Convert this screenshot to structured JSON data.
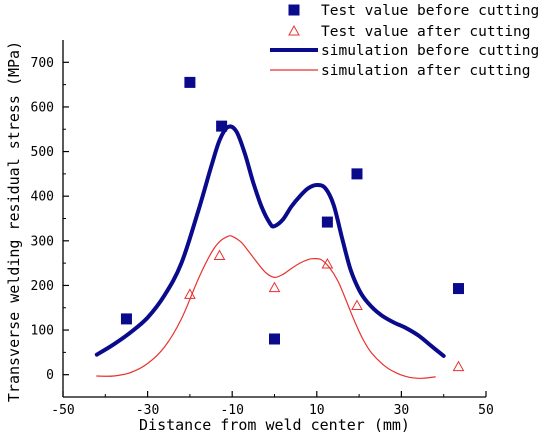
{
  "chart_data": {
    "type": "scatter",
    "xlabel": "Distance from weld center (mm)",
    "ylabel": "Transverse welding residual stress (MPa)",
    "xlim": [
      -50,
      50
    ],
    "ylim": [
      -50,
      750
    ],
    "xticks": [
      -50,
      -30,
      -10,
      10,
      30,
      50
    ],
    "yticks": [
      0,
      100,
      200,
      300,
      400,
      500,
      600,
      700
    ],
    "grid": false,
    "legend_position": "top-right",
    "series": [
      {
        "name": "Test value before cutting",
        "kind": "marker-square",
        "color": "#0a0a8c",
        "x": [
          -35,
          -20,
          -12.5,
          0,
          12.5,
          19.5,
          43.5
        ],
        "y": [
          125,
          655,
          557,
          80,
          342,
          450,
          193
        ]
      },
      {
        "name": "Test value after cutting",
        "kind": "marker-triangle-open",
        "color": "#e8322e",
        "x": [
          -20,
          -13,
          0,
          12.5,
          19.5,
          43.5
        ],
        "y": [
          180,
          267,
          195,
          248,
          155,
          18
        ]
      },
      {
        "name": "simulation before cutting",
        "kind": "line-thick",
        "color": "#0a0a8c",
        "x": [
          -42,
          -38,
          -34,
          -30,
          -26,
          -22,
          -18,
          -15,
          -13,
          -11,
          -9,
          -7,
          -5,
          -3,
          -1,
          0,
          2,
          4,
          6,
          8,
          10,
          12,
          14,
          16,
          18,
          20,
          22,
          25,
          28,
          31,
          34,
          37,
          40
        ],
        "y": [
          45,
          68,
          95,
          128,
          178,
          250,
          368,
          465,
          525,
          555,
          545,
          495,
          430,
          375,
          338,
          333,
          348,
          377,
          400,
          418,
          425,
          418,
          380,
          305,
          235,
          190,
          162,
          135,
          118,
          105,
          88,
          65,
          42
        ]
      },
      {
        "name": "simulation after cutting",
        "kind": "line-thin",
        "color": "#e8322e",
        "x": [
          -42,
          -38,
          -34,
          -30,
          -26,
          -22,
          -18,
          -15,
          -13,
          -11,
          -10,
          -8,
          -6,
          -4,
          -2,
          0,
          2,
          4,
          6,
          8,
          9,
          11,
          13,
          15,
          17,
          19,
          21,
          23,
          26,
          29,
          32,
          35,
          38
        ],
        "y": [
          -3,
          -3,
          5,
          25,
          62,
          125,
          215,
          272,
          298,
          310,
          310,
          298,
          275,
          250,
          228,
          218,
          225,
          238,
          250,
          258,
          260,
          258,
          240,
          210,
          165,
          118,
          78,
          48,
          20,
          3,
          -6,
          -8,
          -5
        ]
      }
    ]
  }
}
